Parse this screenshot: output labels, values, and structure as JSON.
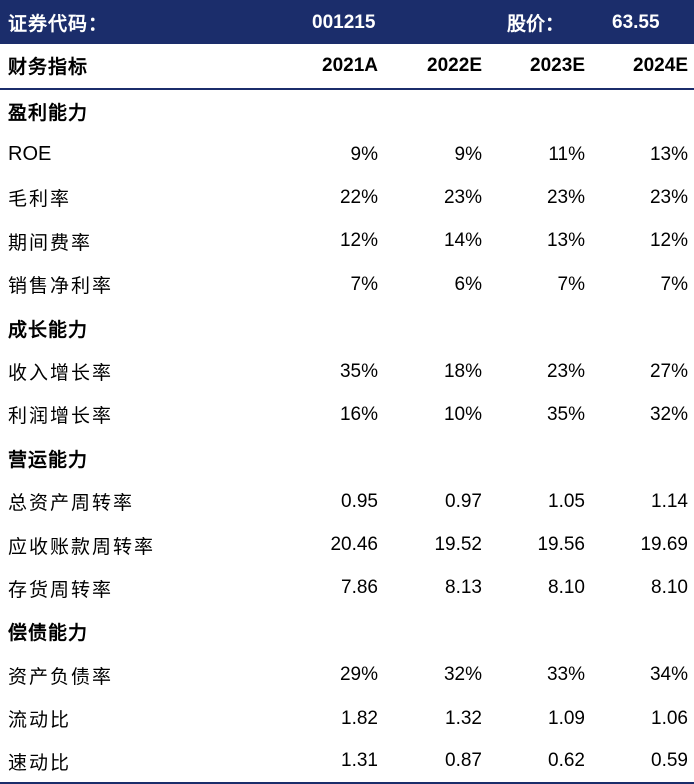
{
  "header": {
    "code_label": "证券代码：",
    "code": "001215",
    "price_label": "股价：",
    "price": "63.55"
  },
  "columns": {
    "label": "财务指标",
    "years": [
      "2021A",
      "2022E",
      "2023E",
      "2024E"
    ]
  },
  "rows": [
    {
      "type": "section",
      "label": "盈利能力"
    },
    {
      "type": "data",
      "label": "ROE",
      "values": [
        "9%",
        "9%",
        "11%",
        "13%"
      ]
    },
    {
      "type": "data",
      "label": "毛利率",
      "values": [
        "22%",
        "23%",
        "23%",
        "23%"
      ]
    },
    {
      "type": "data",
      "label": "期间费率",
      "values": [
        "12%",
        "14%",
        "13%",
        "12%"
      ]
    },
    {
      "type": "data",
      "label": "销售净利率",
      "values": [
        "7%",
        "6%",
        "7%",
        "7%"
      ]
    },
    {
      "type": "section",
      "label": "成长能力"
    },
    {
      "type": "data",
      "label": "收入增长率",
      "values": [
        "35%",
        "18%",
        "23%",
        "27%"
      ]
    },
    {
      "type": "data",
      "label": "利润增长率",
      "values": [
        "16%",
        "10%",
        "35%",
        "32%"
      ]
    },
    {
      "type": "section",
      "label": "营运能力"
    },
    {
      "type": "data",
      "label": "总资产周转率",
      "values": [
        "0.95",
        "0.97",
        "1.05",
        "1.14"
      ]
    },
    {
      "type": "data",
      "label": "应收账款周转率",
      "values": [
        "20.46",
        "19.52",
        "19.56",
        "19.69"
      ]
    },
    {
      "type": "data",
      "label": "存货周转率",
      "values": [
        "7.86",
        "8.13",
        "8.10",
        "8.10"
      ]
    },
    {
      "type": "section",
      "label": "偿债能力"
    },
    {
      "type": "data",
      "label": "资产负债率",
      "values": [
        "29%",
        "32%",
        "33%",
        "34%"
      ]
    },
    {
      "type": "data",
      "label": "流动比",
      "values": [
        "1.82",
        "1.32",
        "1.09",
        "1.06"
      ]
    },
    {
      "type": "data",
      "label": "速动比",
      "values": [
        "1.31",
        "0.87",
        "0.62",
        "0.59"
      ]
    }
  ],
  "colors": {
    "header_bg": "#1b2d6b",
    "header_text": "#ffffff"
  }
}
